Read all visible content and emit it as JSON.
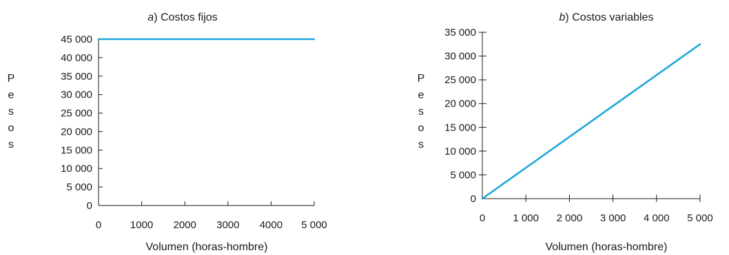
{
  "chart_data": [
    {
      "type": "line",
      "title_prefix": "a",
      "title": "Costos fijos",
      "xlabel": "Volumen (horas-hombre)",
      "ylabel": "Pesos",
      "xlim": [
        0,
        5000
      ],
      "ylim": [
        0,
        45000
      ],
      "xticks": [
        0,
        1000,
        2000,
        3000,
        4000,
        5000
      ],
      "xtick_labels": [
        "0",
        "1000",
        "2000",
        "3000",
        "4000",
        "5 000"
      ],
      "yticks": [
        0,
        5000,
        10000,
        15000,
        20000,
        25000,
        30000,
        35000,
        40000,
        45000
      ],
      "ytick_labels": [
        "0",
        "5 000",
        "10 000",
        "15 000",
        "20 000",
        "25 000",
        "30 000",
        "35 000",
        "40 000",
        "45 000"
      ],
      "grid": false,
      "series": [
        {
          "color": "#1aa7d9",
          "x": [
            0,
            5000
          ],
          "y": [
            45000,
            45000
          ]
        }
      ]
    },
    {
      "type": "line",
      "title_prefix": "b",
      "title": "Costos variables",
      "xlabel": "Volumen (horas-hombre)",
      "ylabel": "Pesos",
      "xlim": [
        0,
        5000
      ],
      "ylim": [
        0,
        35000
      ],
      "xticks": [
        0,
        1000,
        2000,
        3000,
        4000,
        5000
      ],
      "xtick_labels": [
        "0",
        "1 000",
        "2 000",
        "3 000",
        "4 000",
        "5 000"
      ],
      "yticks": [
        0,
        5000,
        10000,
        15000,
        20000,
        25000,
        30000,
        35000
      ],
      "ytick_labels": [
        "0",
        "5 000",
        "10 000",
        "15 000",
        "20 000",
        "25 000",
        "30 000",
        "35 000"
      ],
      "grid": false,
      "series": [
        {
          "color": "#1aa7d9",
          "x": [
            0,
            5000
          ],
          "y": [
            0,
            32500
          ]
        }
      ]
    }
  ]
}
